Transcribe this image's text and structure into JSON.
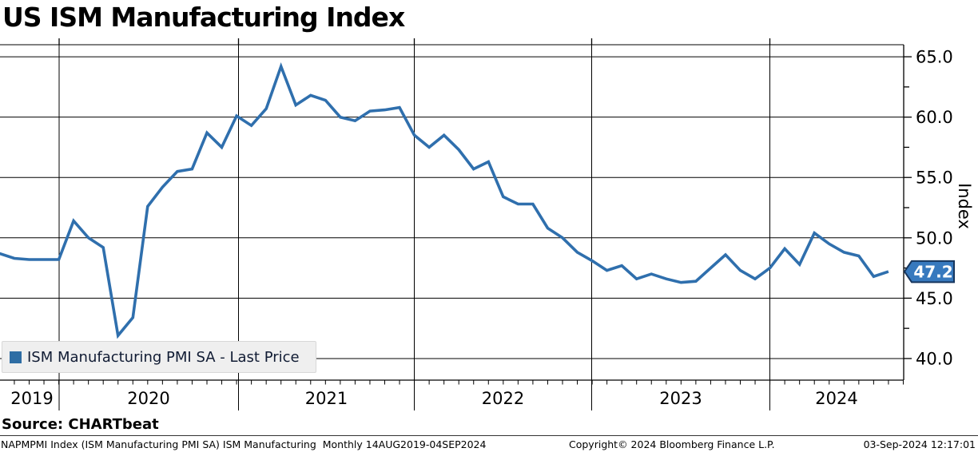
{
  "header": {
    "title": "US ISM Manufacturing Index"
  },
  "legend": {
    "label": "ISM Manufacturing PMI SA - Last Price",
    "swatch_color": "#2e6da4"
  },
  "colors": {
    "line": "#2f6fad",
    "badge_fill": "#3779be",
    "badge_border": "#17365d",
    "badge_text": "#ffffff",
    "grid": "#000000",
    "legend_bg": "#efefef"
  },
  "chart_data": {
    "type": "line",
    "title": "US ISM Manufacturing Index",
    "xlabel": "",
    "ylabel": "Index",
    "ylim": [
      38.1,
      66.1
    ],
    "yticks_major": [
      40.0,
      45.0,
      50.0,
      55.0,
      60.0,
      65.0
    ],
    "ytick_minor_step": 2.5,
    "grid": "horizontal-major-and-vertical-year-boundaries",
    "legend_position": "bottom-left",
    "year_labels": [
      "2019",
      "2020",
      "2021",
      "2022",
      "2023",
      "2024"
    ],
    "frequency": "Monthly",
    "range_shown": "14AUG2019-04SEP2024",
    "last_price": 47.2,
    "last_price_label": "47.2",
    "series": [
      {
        "name": "ISM Manufacturing PMI SA - Last Price",
        "x": [
          "2019-08",
          "2019-09",
          "2019-10",
          "2019-11",
          "2019-12",
          "2020-01",
          "2020-02",
          "2020-03",
          "2020-04",
          "2020-05",
          "2020-06",
          "2020-07",
          "2020-08",
          "2020-09",
          "2020-10",
          "2020-11",
          "2020-12",
          "2021-01",
          "2021-02",
          "2021-03",
          "2021-04",
          "2021-05",
          "2021-06",
          "2021-07",
          "2021-08",
          "2021-09",
          "2021-10",
          "2021-11",
          "2021-12",
          "2022-01",
          "2022-02",
          "2022-03",
          "2022-04",
          "2022-05",
          "2022-06",
          "2022-07",
          "2022-08",
          "2022-09",
          "2022-10",
          "2022-11",
          "2022-12",
          "2023-01",
          "2023-02",
          "2023-03",
          "2023-04",
          "2023-05",
          "2023-06",
          "2023-07",
          "2023-08",
          "2023-09",
          "2023-10",
          "2023-11",
          "2023-12",
          "2024-01",
          "2024-02",
          "2024-03",
          "2024-04",
          "2024-05",
          "2024-06",
          "2024-07",
          "2024-08"
        ],
        "values": [
          48.7,
          48.3,
          48.2,
          48.2,
          48.2,
          51.4,
          50.0,
          49.2,
          41.9,
          43.4,
          52.6,
          54.2,
          55.5,
          55.7,
          58.7,
          57.5,
          60.1,
          59.3,
          60.7,
          64.2,
          61.0,
          61.8,
          61.4,
          60.0,
          59.7,
          60.5,
          60.6,
          60.8,
          58.5,
          57.5,
          58.5,
          57.3,
          55.7,
          56.3,
          53.4,
          52.8,
          52.8,
          50.8,
          50.0,
          48.8,
          48.1,
          47.3,
          47.7,
          46.6,
          47.0,
          46.6,
          46.3,
          46.4,
          47.5,
          48.6,
          47.3,
          46.6,
          47.5,
          49.1,
          47.8,
          50.4,
          49.5,
          48.8,
          48.5,
          46.8,
          47.2
        ]
      }
    ]
  },
  "footer": {
    "source_label": "Source: CHARTbeat",
    "left": "NAPMPMI Index (ISM Manufacturing PMI SA) ISM Manufacturing  Monthly 14AUG2019-04SEP2024",
    "center": "Copyright© 2024 Bloomberg Finance L.P.",
    "right": "03-Sep-2024 12:17:01"
  }
}
